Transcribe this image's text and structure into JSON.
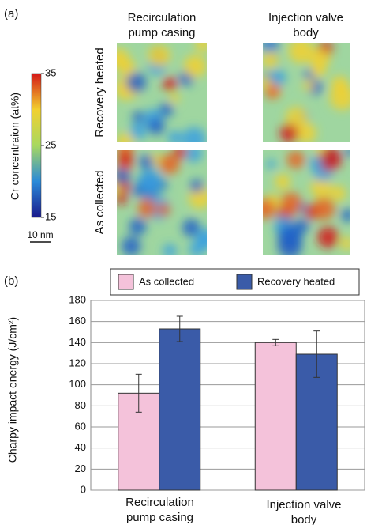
{
  "panel_a": {
    "label": "(a)",
    "columns": [
      "Recirculation pump casing",
      "Injection valve body"
    ],
    "rows": [
      "Recovery heated",
      "As collected"
    ],
    "colorbar": {
      "label": "Cr concentraion (at%)",
      "lim": [
        15,
        35
      ],
      "ticks": [
        15,
        25,
        35
      ]
    },
    "scale_bar": "10 nm"
  },
  "panel_b_label": "(b)",
  "chart_data": {
    "type": "bar",
    "y_label": "Charpy impact energy (J/cm²)",
    "categories": [
      "Recirculation pump casing",
      "Injection valve body"
    ],
    "series": [
      {
        "name": "As collected",
        "color": "#f4c2da",
        "values": [
          92,
          140
        ],
        "errors": [
          18,
          3
        ]
      },
      {
        "name": "Recovery heated",
        "color": "#3a5ba8",
        "values": [
          153,
          129
        ],
        "errors": [
          12,
          22
        ]
      }
    ],
    "ylim": [
      0,
      180
    ],
    "yticks": [
      0,
      20,
      40,
      60,
      80,
      100,
      120,
      140,
      160,
      180
    ],
    "grid": true
  }
}
